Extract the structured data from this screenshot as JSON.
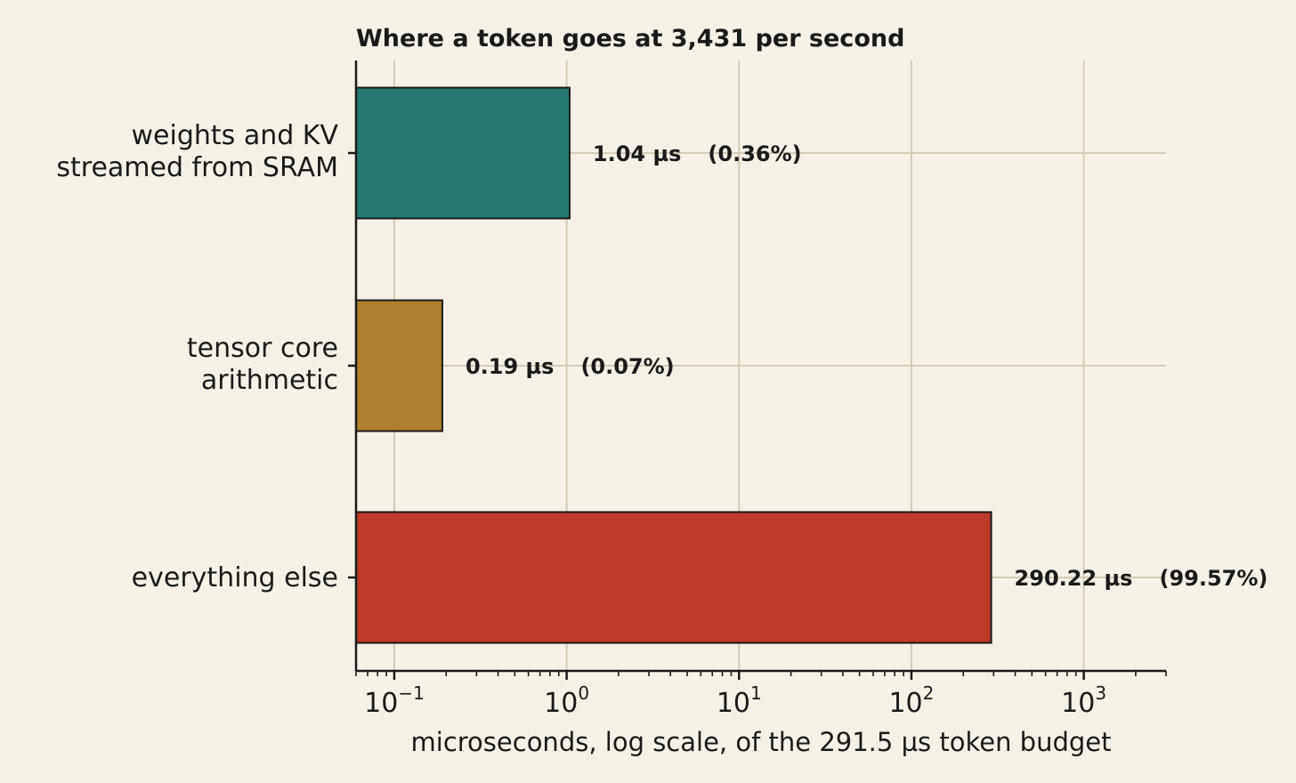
{
  "chart_data": {
    "type": "bar",
    "orientation": "horizontal",
    "title": "Where a token goes at 3,431 per second",
    "xlabel": "microseconds, log scale, of the 291.5 µs token budget",
    "x_scale": "log",
    "xlim": [
      0.06,
      3000
    ],
    "grid": true,
    "categories": [
      [
        "weights and KV",
        "streamed from SRAM"
      ],
      [
        "tensor core",
        "arithmetic"
      ],
      [
        "everything else"
      ]
    ],
    "values": [
      1.04,
      0.19,
      290.22
    ],
    "value_labels": [
      "1.04 µs",
      "0.19 µs",
      "290.22 µs"
    ],
    "percent_labels": [
      "(0.36%)",
      "(0.07%)",
      "(99.57%)"
    ],
    "colors": [
      "#247870",
      "#ae8130",
      "#bc3b29"
    ],
    "x_ticks": [
      {
        "base": "10",
        "exp": "−1",
        "value": 0.1
      },
      {
        "base": "10",
        "exp": "0",
        "value": 1
      },
      {
        "base": "10",
        "exp": "1",
        "value": 10
      },
      {
        "base": "10",
        "exp": "2",
        "value": 100
      },
      {
        "base": "10",
        "exp": "3",
        "value": 1000
      }
    ]
  },
  "colors": {
    "background": "#f5f1e6",
    "grid": "#d6cbb5",
    "axis": "#1a1a1a"
  }
}
